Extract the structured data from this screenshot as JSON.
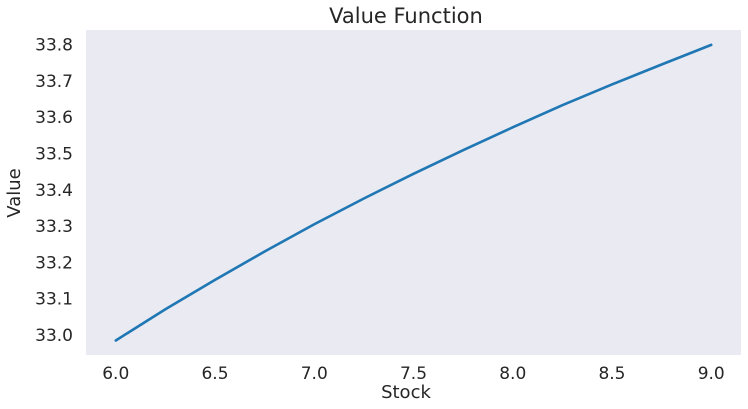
{
  "chart_data": {
    "type": "line",
    "title": "Value Function",
    "xlabel": "Stock",
    "ylabel": "Value",
    "xlim": [
      5.85,
      9.15
    ],
    "ylim": [
      32.945,
      33.84
    ],
    "xticks": [
      "6.0",
      "6.5",
      "7.0",
      "7.5",
      "8.0",
      "8.5",
      "9.0"
    ],
    "yticks": [
      "33.0",
      "33.1",
      "33.2",
      "33.3",
      "33.4",
      "33.5",
      "33.6",
      "33.7",
      "33.8"
    ],
    "grid": false,
    "background": "#eaeaf2",
    "series": [
      {
        "color": "#1f77b4",
        "x": [
          6.0,
          6.25,
          6.5,
          6.75,
          7.0,
          7.25,
          7.5,
          7.75,
          8.0,
          8.25,
          8.5,
          8.75,
          9.0
        ],
        "y": [
          32.985,
          33.071,
          33.152,
          33.23,
          33.305,
          33.376,
          33.444,
          33.509,
          33.572,
          33.633,
          33.69,
          33.745,
          33.799
        ]
      }
    ]
  }
}
